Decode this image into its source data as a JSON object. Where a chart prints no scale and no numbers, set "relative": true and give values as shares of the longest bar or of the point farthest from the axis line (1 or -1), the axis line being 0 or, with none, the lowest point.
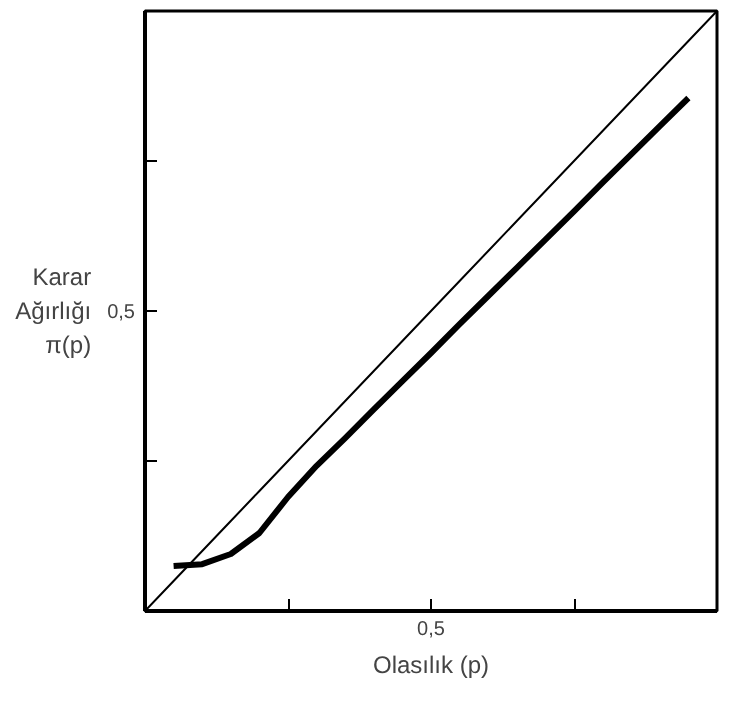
{
  "chart_data": {
    "type": "line",
    "xlabel": "Olasılık (p)",
    "ylabel": "Karar\nAğırlığı\nπ(p)",
    "relative": true,
    "grid": false,
    "annotations": [
      "0,5",
      "0,5"
    ],
    "categories": [
      null,
      null,
      null,
      null,
      null,
      null,
      null,
      null,
      null,
      null,
      null,
      null,
      null,
      null,
      null,
      null,
      null,
      null,
      null,
      null,
      null
    ],
    "series": [
      {
        "color": "#000000",
        "values": [
          0,
          0.05,
          0.1,
          0.15,
          0.2,
          0.25,
          0.3,
          0.35,
          0.4,
          0.45,
          0.5,
          0.55,
          0.6,
          0.65,
          0.7,
          0.75,
          0.8,
          0.85,
          0.9,
          0.95,
          1
        ]
      },
      {
        "color": "#000000",
        "values": [
          null,
          0.075,
          0.078,
          0.095,
          0.13,
          0.19,
          0.242,
          0.288,
          0.336,
          0.383,
          0.43,
          0.478,
          0.525,
          0.572,
          0.619,
          0.666,
          0.714,
          0.761,
          0.808,
          0.855,
          null
        ]
      }
    ]
  }
}
